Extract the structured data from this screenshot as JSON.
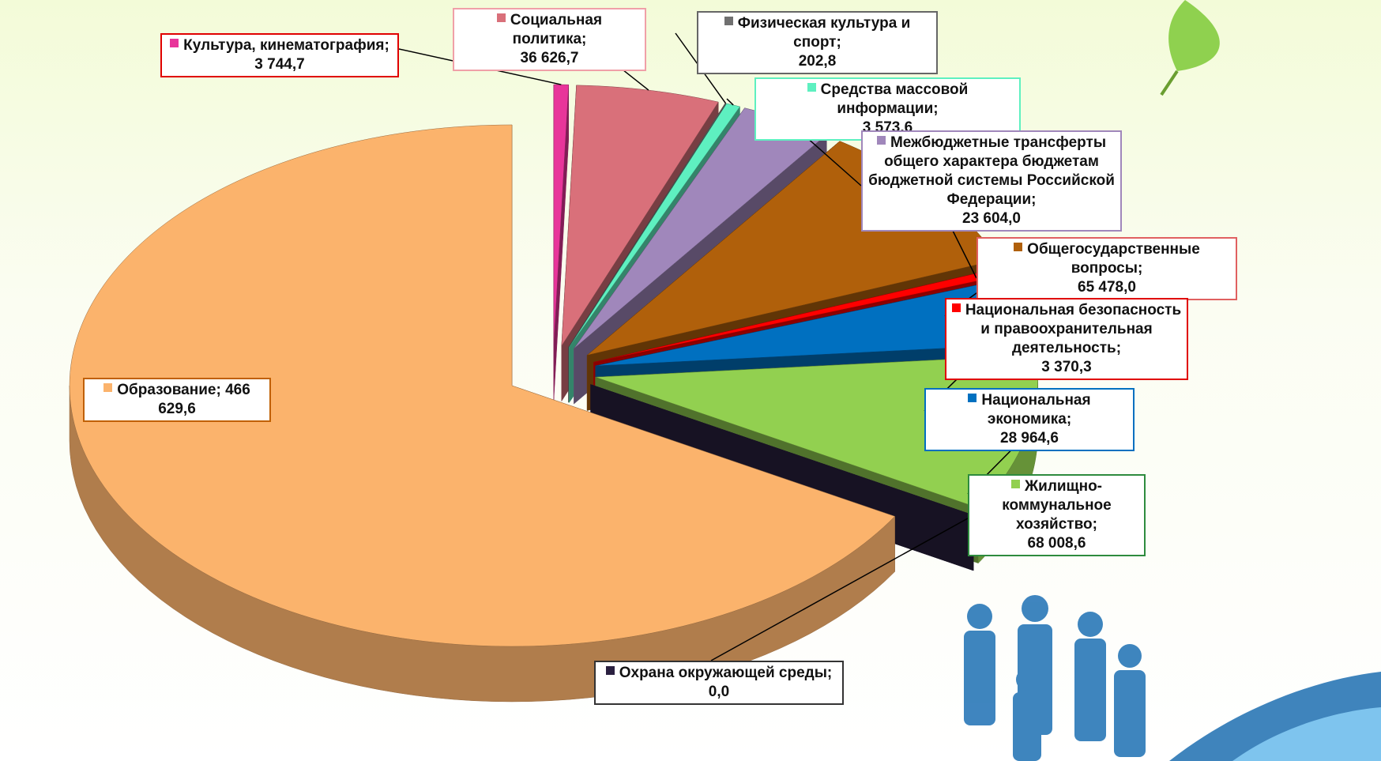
{
  "chart_data": {
    "type": "pie3d",
    "categories": [
      "Культура, кинематография;",
      "Социальная политика;",
      "Физическая культура и спорт;",
      "Средства массовой информации;",
      "Межбюджетные трансферты общего характера бюджетам бюджетной системы Российской Федерации;",
      "Общегосударственные вопросы;",
      "Национальная безопасность и правоохранительная деятельность;",
      "Национальная экономика;",
      "Жилищно-коммунальное хозяйство;",
      "Охрана окружающей среды;",
      "Образование;"
    ],
    "values": [
      3744.7,
      36626.7,
      202.8,
      3573.6,
      23604.0,
      65478.0,
      3370.3,
      28964.6,
      68008.6,
      0.0,
      466629.6
    ],
    "value_labels": [
      "3 744,7",
      "36 626,7",
      "202,8",
      "3 573,6",
      "23 604,0",
      "65 478,0",
      "3 370,3",
      "28 964,6",
      "68 008,6",
      "0,0",
      "466 629,6"
    ],
    "colors": [
      "#e8359a",
      "#d9707a",
      "#707070",
      "#5ef0c0",
      "#a087bb",
      "#b0600b",
      "#ff0000",
      "#0070c0",
      "#92d050",
      "#2a2040",
      "#fbb36c"
    ]
  }
}
